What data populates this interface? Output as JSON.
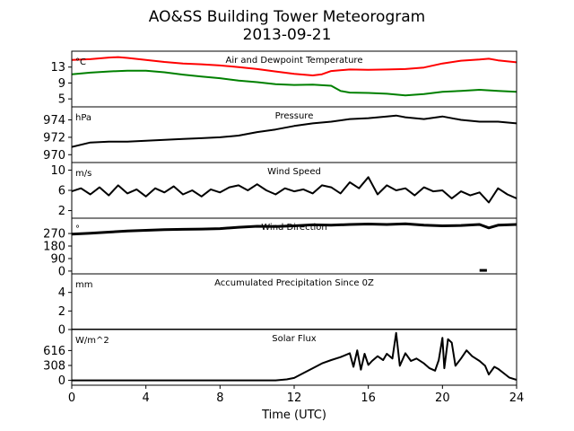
{
  "title": "AO&SS Building Tower Meteorogram",
  "date": "2013-09-21",
  "xlabel": "Time (UTC)",
  "x_ticks": [
    "0",
    "4",
    "8",
    "12",
    "16",
    "20",
    "24"
  ],
  "colors": {
    "temperature": "#ff0000",
    "dewpoint": "#008000",
    "default": "#000000"
  },
  "chart_data": [
    {
      "type": "line",
      "title": "Air and Dewpoint Temperature",
      "unit": "°C",
      "xlim": [
        0,
        24
      ],
      "ylim": [
        3,
        17
      ],
      "y_ticks": [
        5,
        9,
        13
      ],
      "series": [
        {
          "color": "#ff0000",
          "x": [
            0,
            1,
            2,
            2.5,
            3,
            4,
            5,
            6,
            7,
            8,
            9,
            10,
            11,
            12,
            13,
            13.5,
            14,
            15,
            16,
            17,
            18,
            19,
            20,
            21,
            22,
            22.5,
            23,
            24
          ],
          "y": [
            14.8,
            15.0,
            15.4,
            15.5,
            15.3,
            14.8,
            14.3,
            13.9,
            13.7,
            13.4,
            13.0,
            12.5,
            11.9,
            11.3,
            10.9,
            11.2,
            12.0,
            12.4,
            12.3,
            12.4,
            12.5,
            12.9,
            13.9,
            14.6,
            14.9,
            15.1,
            14.7,
            14.2
          ]
        },
        {
          "color": "#008000",
          "x": [
            0,
            1,
            2,
            3,
            4,
            5,
            6,
            7,
            8,
            9,
            10,
            11,
            12,
            13,
            14,
            14.5,
            15,
            16,
            17,
            18,
            19,
            20,
            21,
            22,
            23,
            24
          ],
          "y": [
            11.2,
            11.6,
            11.9,
            12.1,
            12.1,
            11.7,
            11.1,
            10.6,
            10.2,
            9.6,
            9.2,
            8.7,
            8.5,
            8.6,
            8.3,
            7.0,
            6.6,
            6.5,
            6.3,
            5.9,
            6.2,
            6.8,
            7.0,
            7.3,
            7.0,
            6.8
          ]
        }
      ]
    },
    {
      "type": "line",
      "title": "Pressure",
      "unit": "hPa",
      "xlim": [
        0,
        24
      ],
      "ylim": [
        969.1,
        975.5
      ],
      "y_ticks": [
        970,
        972,
        974
      ],
      "series": [
        {
          "color": "#000000",
          "x": [
            0,
            1,
            2,
            3,
            4,
            5,
            6,
            7,
            8,
            9,
            10,
            11,
            12,
            13,
            14,
            15,
            16,
            17,
            17.5,
            18,
            19,
            20,
            21,
            22,
            23,
            24
          ],
          "y": [
            970.9,
            971.4,
            971.5,
            971.5,
            971.6,
            971.7,
            971.8,
            971.9,
            972.0,
            972.2,
            972.6,
            972.9,
            973.3,
            973.6,
            973.8,
            974.1,
            974.2,
            974.4,
            974.5,
            974.3,
            974.1,
            974.4,
            974.0,
            973.8,
            973.8,
            973.6
          ]
        }
      ]
    },
    {
      "type": "line",
      "title": "Wind Speed",
      "unit": "m/s",
      "xlim": [
        0,
        24
      ],
      "ylim": [
        0.5,
        11.5
      ],
      "y_ticks": [
        2,
        6,
        10
      ],
      "series": [
        {
          "color": "#000000",
          "x": [
            0,
            0.5,
            1,
            1.5,
            2,
            2.5,
            3,
            3.5,
            4,
            4.5,
            5,
            5.5,
            6,
            6.5,
            7,
            7.5,
            8,
            8.5,
            9,
            9.5,
            10,
            10.5,
            11,
            11.5,
            12,
            12.5,
            13,
            13.5,
            14,
            14.5,
            15,
            15.5,
            16,
            16.5,
            17,
            17.5,
            18,
            18.5,
            19,
            19.5,
            20,
            20.5,
            21,
            21.5,
            22,
            22.5,
            23,
            23.5,
            24
          ],
          "y": [
            5.8,
            6.4,
            5.2,
            6.6,
            5.0,
            7.0,
            5.4,
            6.2,
            4.8,
            6.4,
            5.6,
            6.8,
            5.2,
            6.0,
            4.8,
            6.2,
            5.6,
            6.6,
            7.0,
            6.0,
            7.2,
            6.0,
            5.2,
            6.4,
            5.8,
            6.2,
            5.4,
            7.0,
            6.6,
            5.4,
            7.6,
            6.4,
            8.6,
            5.2,
            7.0,
            6.0,
            6.4,
            5.0,
            6.6,
            5.8,
            6.0,
            4.4,
            5.8,
            5.0,
            5.6,
            3.6,
            6.4,
            5.2,
            4.4
          ]
        }
      ]
    },
    {
      "type": "line",
      "title": "Wind Direction",
      "unit": "°",
      "xlim": [
        0,
        24
      ],
      "ylim": [
        -20,
        380
      ],
      "y_ticks": [
        0,
        90,
        180,
        270
      ],
      "series": [
        {
          "color": "#000000",
          "x": [
            0,
            1,
            2,
            3,
            4,
            5,
            6,
            7,
            8,
            9,
            10,
            11,
            12,
            13,
            14,
            15,
            16,
            17,
            18,
            19,
            20,
            21,
            22,
            22.5,
            23,
            24
          ],
          "y": [
            265,
            272,
            280,
            288,
            293,
            298,
            300,
            302,
            305,
            315,
            322,
            320,
            325,
            332,
            330,
            335,
            338,
            335,
            340,
            330,
            325,
            328,
            335,
            310,
            330,
            335
          ]
        },
        {
          "color": "#000000",
          "x": [
            22.0,
            22.4
          ],
          "y": [
            5,
            5
          ]
        }
      ]
    },
    {
      "type": "line",
      "title": "Accumulated Precipitation Since 0Z",
      "unit": "mm",
      "xlim": [
        0,
        24
      ],
      "ylim": [
        0,
        6
      ],
      "y_ticks": [
        0,
        2,
        4
      ],
      "series": [
        {
          "color": "#000000",
          "x": [
            0,
            24
          ],
          "y": [
            0,
            0
          ]
        }
      ]
    },
    {
      "type": "line",
      "title": "Solar Flux",
      "unit": "W/m^2",
      "xlim": [
        0,
        24
      ],
      "ylim": [
        -100,
        1050
      ],
      "y_ticks": [
        0,
        308,
        616
      ],
      "series": [
        {
          "color": "#000000",
          "x": [
            0,
            11,
            11.6,
            12,
            12.5,
            13,
            13.5,
            14,
            14.5,
            15,
            15.2,
            15.4,
            15.6,
            15.8,
            16,
            16.2,
            16.5,
            16.8,
            17,
            17.3,
            17.5,
            17.7,
            18,
            18.3,
            18.6,
            19,
            19.3,
            19.6,
            19.8,
            20,
            20.1,
            20.3,
            20.5,
            20.7,
            21,
            21.3,
            21.6,
            22,
            22.3,
            22.5,
            22.8,
            23,
            23.3,
            23.6,
            24
          ],
          "y": [
            0,
            0,
            20,
            50,
            150,
            250,
            350,
            420,
            480,
            560,
            280,
            620,
            220,
            550,
            320,
            400,
            500,
            420,
            550,
            450,
            980,
            300,
            560,
            400,
            450,
            350,
            250,
            200,
            420,
            880,
            250,
            850,
            780,
            300,
            450,
            620,
            500,
            400,
            300,
            120,
            280,
            240,
            150,
            60,
            10
          ]
        }
      ]
    }
  ]
}
